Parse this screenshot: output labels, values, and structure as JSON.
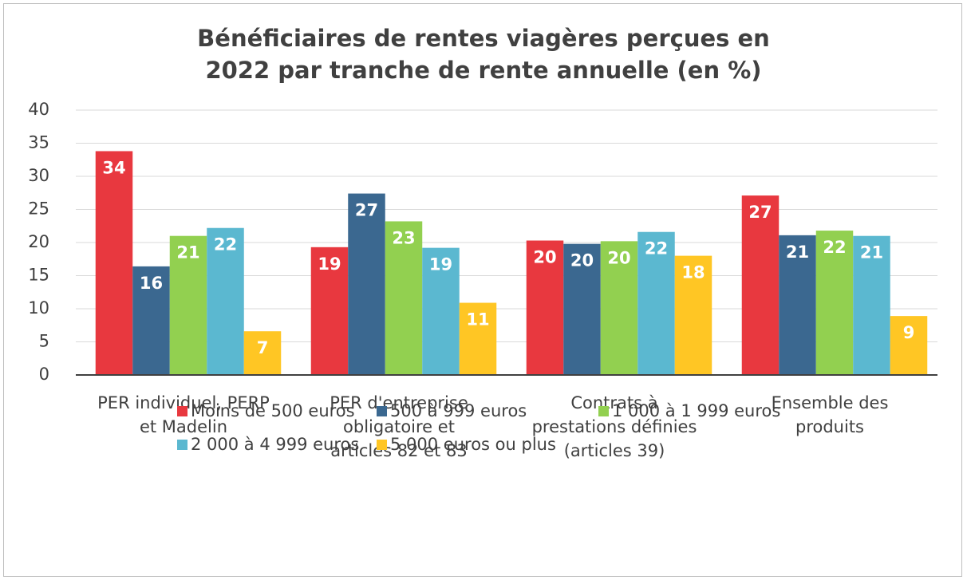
{
  "chart_data": {
    "type": "bar",
    "title": "Bénéficiaires de rentes viagères perçues en 2022 par tranche de rente annuelle (en %)",
    "categories": [
      "PER individuel, PERP et Madelin",
      "PER d'entreprise obligatoire et articles 82 et 83",
      "Contrats à prestations définies (articles 39)",
      "Ensemble des produits"
    ],
    "series": [
      {
        "name": "Moins de 500 euros",
        "color": "#e8383f",
        "values": [
          33.8,
          19.3,
          20.3,
          27.1
        ],
        "value_labels": [
          "34",
          "19",
          "20",
          "27"
        ]
      },
      {
        "name": "500 à 999 euros",
        "color": "#3b6890",
        "values": [
          16.4,
          27.4,
          19.8,
          21.1
        ],
        "value_labels": [
          "16",
          "27",
          "20",
          "21"
        ]
      },
      {
        "name": "1 000 à 1 999 euros",
        "color": "#92d050",
        "values": [
          21.0,
          23.2,
          20.2,
          21.8
        ],
        "value_labels": [
          "21",
          "23",
          "20",
          "22"
        ]
      },
      {
        "name": "2 000 à 4 999 euros",
        "color": "#5bb8d0",
        "values": [
          22.2,
          19.2,
          21.6,
          21.0
        ],
        "value_labels": [
          "22",
          "19",
          "22",
          "21"
        ]
      },
      {
        "name": "5 000 euros ou plus",
        "color": "#ffc624",
        "values": [
          6.6,
          10.9,
          18.0,
          8.9
        ],
        "value_labels": [
          "7",
          "11",
          "18",
          "9"
        ]
      }
    ],
    "ylim": [
      0,
      40
    ],
    "yticks": [
      0,
      5,
      10,
      15,
      20,
      25,
      30,
      35,
      40
    ],
    "grid": true,
    "legend": "bottom"
  }
}
